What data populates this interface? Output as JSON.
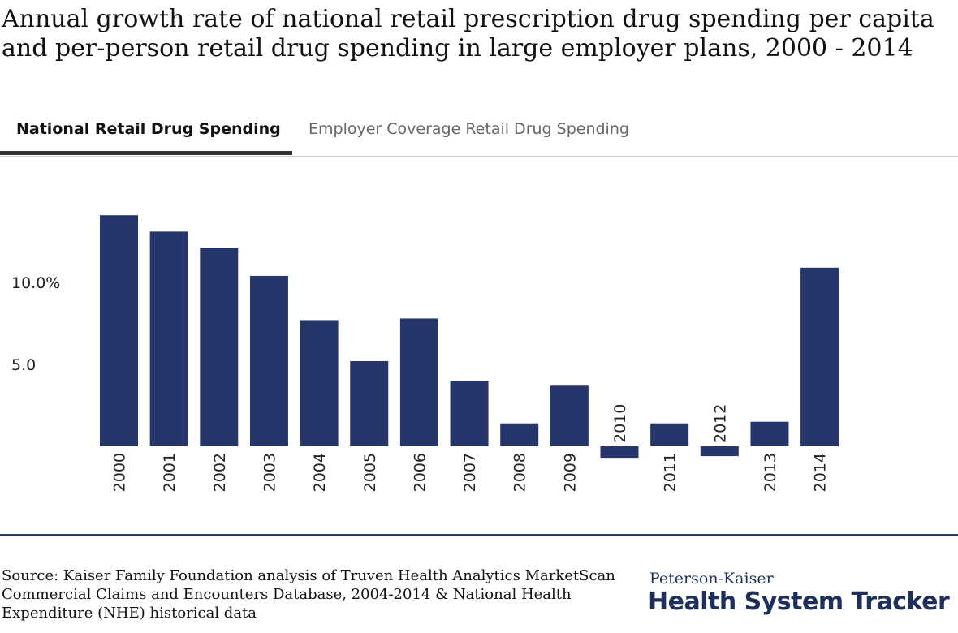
{
  "title": "Annual growth rate of national retail prescription drug spending per capita and per-person retail drug spending in large employer plans, 2000 - 2014",
  "tabs": [
    {
      "label": "National Retail Drug Spending",
      "active": true
    },
    {
      "label": "Employer Coverage Retail Drug Spending",
      "active": false
    }
  ],
  "chart_data": {
    "type": "bar",
    "categories": [
      "2000",
      "2001",
      "2002",
      "2003",
      "2004",
      "2005",
      "2006",
      "2007",
      "2008",
      "2009",
      "2010",
      "2011",
      "2012",
      "2013",
      "2014"
    ],
    "values": [
      14.1,
      13.1,
      12.1,
      10.4,
      7.7,
      5.2,
      7.8,
      4.0,
      1.4,
      3.7,
      -0.7,
      1.4,
      -0.6,
      1.5,
      10.9
    ],
    "ytick_labels": [
      "5.0",
      "10.0%"
    ],
    "yticks": [
      5,
      10
    ],
    "ylim": [
      -1,
      15
    ],
    "grid": false,
    "bar_color": "#26366a"
  },
  "source": "Source: Kaiser Family Foundation analysis of Truven Health Analytics MarketScan Commercial Claims and Encounters Database, 2004-2014 & National Health Expenditure (NHE) historical data",
  "brand": {
    "top": "Peterson-Kaiser",
    "main": "Health System Tracker"
  }
}
